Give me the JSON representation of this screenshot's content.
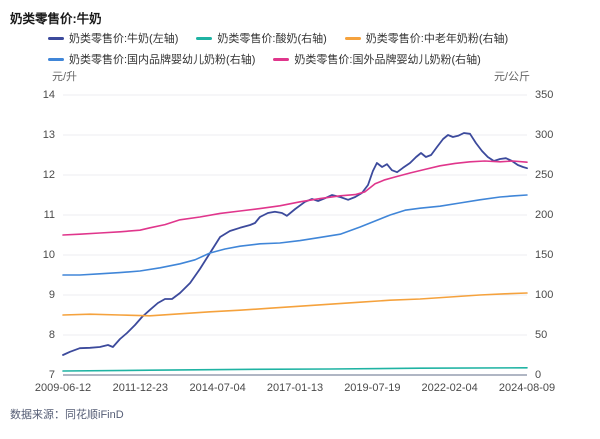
{
  "title": "奶类零售价:牛奶",
  "legend": {
    "rows": [
      [
        0,
        1,
        2
      ],
      [
        3,
        4
      ]
    ]
  },
  "axes": {
    "left_unit": "元/升",
    "right_unit": "元/公斤",
    "y_left_ticks": [
      "14",
      "13",
      "12",
      "11",
      "10",
      "9",
      "8",
      "7"
    ],
    "y_right_ticks": [
      "350",
      "300",
      "250",
      "200",
      "150",
      "100",
      "50",
      "0"
    ],
    "x_ticks": [
      "2009-06-12",
      "2011-12-23",
      "2014-07-04",
      "2017-01-13",
      "2019-07-19",
      "2022-02-04",
      "2024-08-09"
    ]
  },
  "chart_data": {
    "type": "line",
    "title": "奶类零售价:牛奶",
    "grid": true,
    "legend_position": "top",
    "x_domain": [
      2009.45,
      2024.6
    ],
    "x_tick_labels": [
      "2009-06-12",
      "2011-12-23",
      "2014-07-04",
      "2017-01-13",
      "2019-07-19",
      "2022-02-04",
      "2024-08-09"
    ],
    "y_left": {
      "unit": "元/升",
      "min": 7,
      "max": 14,
      "ticks": [
        14,
        13,
        12,
        11,
        10,
        9,
        8,
        7
      ]
    },
    "y_right": {
      "unit": "元/公斤",
      "min": 0,
      "max": 350,
      "ticks": [
        350,
        300,
        250,
        200,
        150,
        100,
        50,
        0
      ]
    },
    "series": [
      {
        "name": "奶类零售价:牛奶(左轴)",
        "axis": "left",
        "color": "#3c4a9c",
        "points": [
          [
            2009.45,
            7.5
          ],
          [
            2009.68,
            7.58
          ],
          [
            2010.0,
            7.67
          ],
          [
            2010.33,
            7.68
          ],
          [
            2010.65,
            7.7
          ],
          [
            2010.92,
            7.75
          ],
          [
            2011.08,
            7.7
          ],
          [
            2011.31,
            7.9
          ],
          [
            2011.54,
            8.05
          ],
          [
            2011.8,
            8.25
          ],
          [
            2012.03,
            8.45
          ],
          [
            2012.29,
            8.63
          ],
          [
            2012.55,
            8.8
          ],
          [
            2012.78,
            8.9
          ],
          [
            2013.01,
            8.9
          ],
          [
            2013.27,
            9.05
          ],
          [
            2013.6,
            9.3
          ],
          [
            2013.92,
            9.65
          ],
          [
            2014.25,
            10.05
          ],
          [
            2014.58,
            10.45
          ],
          [
            2014.9,
            10.6
          ],
          [
            2015.23,
            10.68
          ],
          [
            2015.56,
            10.75
          ],
          [
            2015.72,
            10.8
          ],
          [
            2015.88,
            10.95
          ],
          [
            2016.14,
            11.05
          ],
          [
            2016.37,
            11.08
          ],
          [
            2016.6,
            11.05
          ],
          [
            2016.76,
            10.98
          ],
          [
            2017.03,
            11.15
          ],
          [
            2017.35,
            11.33
          ],
          [
            2017.58,
            11.4
          ],
          [
            2017.78,
            11.35
          ],
          [
            2018.01,
            11.42
          ],
          [
            2018.23,
            11.5
          ],
          [
            2018.5,
            11.45
          ],
          [
            2018.76,
            11.38
          ],
          [
            2018.99,
            11.45
          ],
          [
            2019.21,
            11.55
          ],
          [
            2019.41,
            11.75
          ],
          [
            2019.57,
            12.1
          ],
          [
            2019.7,
            12.3
          ],
          [
            2019.87,
            12.2
          ],
          [
            2020.03,
            12.27
          ],
          [
            2020.19,
            12.12
          ],
          [
            2020.36,
            12.07
          ],
          [
            2020.55,
            12.18
          ],
          [
            2020.78,
            12.3
          ],
          [
            2020.98,
            12.45
          ],
          [
            2021.14,
            12.55
          ],
          [
            2021.3,
            12.45
          ],
          [
            2021.47,
            12.5
          ],
          [
            2021.66,
            12.7
          ],
          [
            2021.86,
            12.9
          ],
          [
            2022.02,
            13.0
          ],
          [
            2022.18,
            12.95
          ],
          [
            2022.35,
            12.98
          ],
          [
            2022.54,
            13.05
          ],
          [
            2022.74,
            13.03
          ],
          [
            2022.93,
            12.8
          ],
          [
            2023.13,
            12.6
          ],
          [
            2023.32,
            12.45
          ],
          [
            2023.52,
            12.35
          ],
          [
            2023.72,
            12.4
          ],
          [
            2023.91,
            12.42
          ],
          [
            2024.11,
            12.35
          ],
          [
            2024.3,
            12.25
          ],
          [
            2024.47,
            12.2
          ],
          [
            2024.6,
            12.17
          ]
        ]
      },
      {
        "name": "奶类零售价:酸奶(右轴)",
        "axis": "right",
        "color": "#1fb3a3",
        "points": [
          [
            2009.45,
            5
          ],
          [
            2012.29,
            6
          ],
          [
            2015.23,
            7
          ],
          [
            2018.17,
            7.5
          ],
          [
            2021.11,
            8.5
          ],
          [
            2024.6,
            9
          ]
        ]
      },
      {
        "name": "奶类零售价:中老年奶粉(右轴)",
        "axis": "right",
        "color": "#f5a23d",
        "points": [
          [
            2009.45,
            75
          ],
          [
            2010.33,
            76
          ],
          [
            2011.31,
            75
          ],
          [
            2012.29,
            74
          ],
          [
            2013.27,
            76.5
          ],
          [
            2014.25,
            79
          ],
          [
            2015.23,
            81
          ],
          [
            2016.21,
            83.5
          ],
          [
            2017.19,
            86
          ],
          [
            2018.17,
            88.5
          ],
          [
            2019.15,
            91
          ],
          [
            2020.13,
            93.5
          ],
          [
            2021.11,
            95
          ],
          [
            2022.09,
            97.5
          ],
          [
            2023.06,
            100
          ],
          [
            2023.88,
            101.5
          ],
          [
            2024.6,
            102.5
          ]
        ]
      },
      {
        "name": "奶类零售价:国内品牌婴幼儿奶粉(右轴)",
        "axis": "right",
        "color": "#4086d8",
        "points": [
          [
            2009.45,
            125
          ],
          [
            2010.0,
            125
          ],
          [
            2010.65,
            126.5
          ],
          [
            2011.31,
            128
          ],
          [
            2011.96,
            130
          ],
          [
            2012.62,
            134
          ],
          [
            2013.27,
            139
          ],
          [
            2013.76,
            144
          ],
          [
            2014.25,
            152.5
          ],
          [
            2014.74,
            157.5
          ],
          [
            2015.23,
            161
          ],
          [
            2015.88,
            164
          ],
          [
            2016.53,
            165
          ],
          [
            2017.19,
            168
          ],
          [
            2017.84,
            172
          ],
          [
            2018.5,
            176
          ],
          [
            2019.15,
            185
          ],
          [
            2019.64,
            192.5
          ],
          [
            2020.13,
            200
          ],
          [
            2020.62,
            206
          ],
          [
            2021.11,
            208.5
          ],
          [
            2021.76,
            211
          ],
          [
            2022.41,
            215
          ],
          [
            2023.06,
            219
          ],
          [
            2023.72,
            222.5
          ],
          [
            2024.2,
            224
          ],
          [
            2024.6,
            225
          ]
        ]
      },
      {
        "name": "奶类零售价:国外品牌婴幼儿奶粉(右轴)",
        "axis": "right",
        "color": "#e0368c",
        "points": [
          [
            2009.45,
            175
          ],
          [
            2010.0,
            176
          ],
          [
            2010.65,
            177.5
          ],
          [
            2011.31,
            179
          ],
          [
            2011.96,
            181
          ],
          [
            2012.29,
            184
          ],
          [
            2012.78,
            188
          ],
          [
            2013.27,
            194
          ],
          [
            2013.92,
            197.5
          ],
          [
            2014.58,
            202
          ],
          [
            2015.23,
            205
          ],
          [
            2015.88,
            208
          ],
          [
            2016.53,
            211.5
          ],
          [
            2017.19,
            216.5
          ],
          [
            2017.84,
            220.5
          ],
          [
            2018.5,
            224
          ],
          [
            2018.99,
            225.5
          ],
          [
            2019.31,
            229
          ],
          [
            2019.64,
            239
          ],
          [
            2019.96,
            244
          ],
          [
            2020.29,
            247.5
          ],
          [
            2020.78,
            252.5
          ],
          [
            2021.27,
            257
          ],
          [
            2021.76,
            261.5
          ],
          [
            2022.25,
            264.5
          ],
          [
            2022.74,
            266.5
          ],
          [
            2023.22,
            267.5
          ],
          [
            2023.72,
            266.5
          ],
          [
            2024.14,
            267.5
          ],
          [
            2024.6,
            266
          ]
        ]
      }
    ],
    "colors": {
      "grid_line": "#ececf2",
      "axis_line": "#b0b6c4",
      "tick_text": "#4a4a4a"
    }
  },
  "footer": {
    "source": "数据来源：同花顺iFinD"
  }
}
